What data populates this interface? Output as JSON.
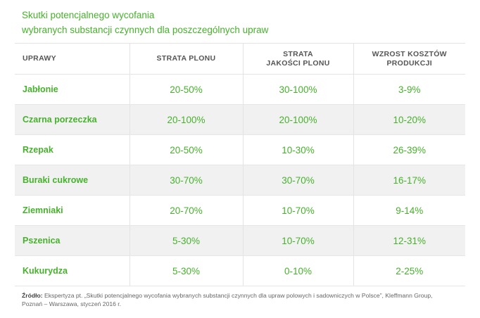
{
  "title": {
    "line1": "Skutki potencjalnego wycofania",
    "line2": "wybranych substancji czynnych dla poszczególnych upraw"
  },
  "table": {
    "headers": {
      "col0": "UPRAWY",
      "col1": "STRATA PLONU",
      "col2_line1": "STRATA",
      "col2_line2": "JAKOŚCI PLONU",
      "col3_line1": "WZROST KOSZTÓW",
      "col3_line2": "PRODUKCJI"
    },
    "rows": [
      {
        "crop": "Jabłonie",
        "yield_loss": "20-50%",
        "quality_loss": "30-100%",
        "cost_increase": "3-9%"
      },
      {
        "crop": "Czarna porzeczka",
        "yield_loss": "20-100%",
        "quality_loss": "20-100%",
        "cost_increase": "10-20%"
      },
      {
        "crop": "Rzepak",
        "yield_loss": "20-50%",
        "quality_loss": "10-30%",
        "cost_increase": "26-39%"
      },
      {
        "crop": "Buraki cukrowe",
        "yield_loss": "30-70%",
        "quality_loss": "30-70%",
        "cost_increase": "16-17%"
      },
      {
        "crop": "Ziemniaki",
        "yield_loss": "20-70%",
        "quality_loss": "10-70%",
        "cost_increase": "9-14%"
      },
      {
        "crop": "Pszenica",
        "yield_loss": "5-30%",
        "quality_loss": "10-70%",
        "cost_increase": "12-31%"
      },
      {
        "crop": "Kukurydza",
        "yield_loss": "5-30%",
        "quality_loss": "0-10%",
        "cost_increase": "2-25%"
      }
    ]
  },
  "footer": {
    "label": "Źródło:",
    "line1": "Ekspertyza pt. „Skutki potencjalnego wycofania wybranych substancji czynnych dla upraw polowych i sadowniczych w Polsce”, Kleffmann Group,",
    "line2": "Poznań – Warszawa, styczeń 2016 r."
  },
  "colors": {
    "accent": "#46b22b",
    "header_text": "#555555",
    "stripe": "#f1f1f1"
  }
}
